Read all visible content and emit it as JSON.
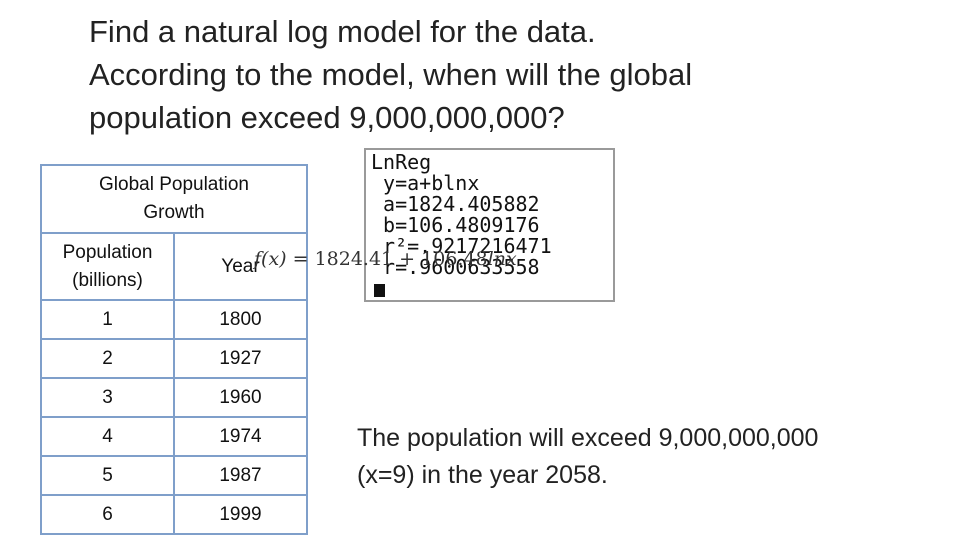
{
  "question": {
    "lines": [
      "Find a natural log model for the data.",
      "According to the model, when will the global",
      "population exceed 9,000,000,000?"
    ]
  },
  "table": {
    "title_lines": [
      "Global Population",
      "Growth"
    ],
    "headers": [
      [
        "Population",
        "(billions)"
      ],
      [
        "Year"
      ]
    ],
    "rows": [
      [
        "1",
        "1800"
      ],
      [
        "2",
        "1927"
      ],
      [
        "3",
        "1960"
      ],
      [
        "4",
        "1974"
      ],
      [
        "5",
        "1987"
      ],
      [
        "6",
        "1999"
      ]
    ]
  },
  "calculator": {
    "lines": [
      "LnReg",
      " y=a+blnx",
      " a=1824.405882",
      " b=106.4809176",
      " r²=.9217216471",
      " r=.9600633558"
    ]
  },
  "formula": {
    "lhs": "f(x)",
    "rhs": " = 1824.41 + 106.48",
    "tail": "lnx"
  },
  "answer": {
    "lines": [
      "The population will exceed 9,000,000,000",
      "(x=9) in the year 2058."
    ]
  }
}
